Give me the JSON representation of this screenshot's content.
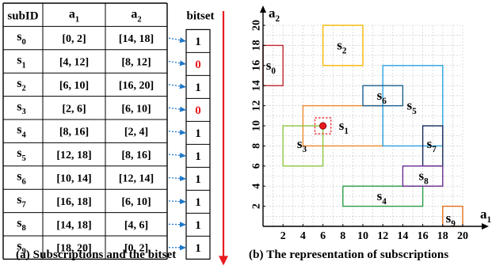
{
  "table": {
    "headers": {
      "subid": "subID",
      "a1": {
        "base": "a",
        "sub": "1"
      },
      "a2": {
        "base": "a",
        "sub": "2"
      },
      "bitset": "bitset"
    },
    "rows": [
      {
        "id": "s",
        "idx": "0",
        "a1": "[0, 2]",
        "a2": "[14, 18]",
        "bit": "1"
      },
      {
        "id": "s",
        "idx": "1",
        "a1": "[4, 12]",
        "a2": "[8, 12]",
        "bit": "0"
      },
      {
        "id": "s",
        "idx": "2",
        "a1": "[6, 10]",
        "a2": "[16, 20]",
        "bit": "1"
      },
      {
        "id": "s",
        "idx": "3",
        "a1": "[2, 6]",
        "a2": "[6, 10]",
        "bit": "0"
      },
      {
        "id": "s",
        "idx": "4",
        "a1": "[8, 16]",
        "a2": "[2, 4]",
        "bit": "1"
      },
      {
        "id": "s",
        "idx": "5",
        "a1": "[12, 18]",
        "a2": "[8, 16]",
        "bit": "1"
      },
      {
        "id": "s",
        "idx": "6",
        "a1": "[10, 14]",
        "a2": "[12, 14]",
        "bit": "1"
      },
      {
        "id": "s",
        "idx": "7",
        "a1": "[16, 18]",
        "a2": "[6, 10]",
        "bit": "1"
      },
      {
        "id": "s",
        "idx": "8",
        "a1": "[14, 18]",
        "a2": "[4, 6]",
        "bit": "1"
      },
      {
        "id": "s",
        "idx": "9",
        "a1": "[18, 20]",
        "a2": "[0, 2]",
        "bit": "1"
      }
    ],
    "bit_colors": {
      "one": "#000000",
      "zero": "#e8191f"
    },
    "arrow_color": "#1f78c8",
    "scan_arrow_color": "#e8191f"
  },
  "plot": {
    "x_axis": {
      "base": "a",
      "sub": "1"
    },
    "y_axis": {
      "base": "a",
      "sub": "2"
    },
    "range": [
      0,
      20
    ],
    "ticks": [
      2,
      4,
      6,
      8,
      10,
      12,
      14,
      16,
      18,
      20
    ],
    "grid": true,
    "rects": [
      {
        "name": "s",
        "idx": "0",
        "a1": [
          0,
          2
        ],
        "a2": [
          14,
          18
        ],
        "color": "#c0272d"
      },
      {
        "name": "s",
        "idx": "1",
        "a1": [
          4,
          12
        ],
        "a2": [
          8,
          12
        ],
        "color": "#ee8a2c"
      },
      {
        "name": "s",
        "idx": "2",
        "a1": [
          6,
          10
        ],
        "a2": [
          16,
          20
        ],
        "color": "#f5b700"
      },
      {
        "name": "s",
        "idx": "3",
        "a1": [
          2,
          6
        ],
        "a2": [
          6,
          10
        ],
        "color": "#8cc63f"
      },
      {
        "name": "s",
        "idx": "4",
        "a1": [
          8,
          16
        ],
        "a2": [
          2,
          4
        ],
        "color": "#2a9d47"
      },
      {
        "name": "s",
        "idx": "5",
        "a1": [
          12,
          18
        ],
        "a2": [
          8,
          16
        ],
        "color": "#29a3e0"
      },
      {
        "name": "s",
        "idx": "6",
        "a1": [
          10,
          14
        ],
        "a2": [
          12,
          14
        ],
        "color": "#1b5f8e"
      },
      {
        "name": "s",
        "idx": "7",
        "a1": [
          16,
          18
        ],
        "a2": [
          6,
          10
        ],
        "color": "#1a2a5c"
      },
      {
        "name": "s",
        "idx": "8",
        "a1": [
          14,
          18
        ],
        "a2": [
          4,
          6
        ],
        "color": "#6a2c91"
      },
      {
        "name": "s",
        "idx": "9",
        "a1": [
          18,
          20
        ],
        "a2": [
          0,
          2
        ],
        "color": "#e0701c"
      }
    ],
    "rect_labels": [
      {
        "idx": "0",
        "at": [
          0.3,
          15.6
        ]
      },
      {
        "idx": "1",
        "at": [
          7.6,
          9.6
        ]
      },
      {
        "idx": "2",
        "at": [
          7.4,
          17.6
        ]
      },
      {
        "idx": "3",
        "at": [
          3.4,
          7.8
        ]
      },
      {
        "idx": "4",
        "at": [
          11.4,
          2.6
        ]
      },
      {
        "idx": "5",
        "at": [
          14.4,
          11.6
        ]
      },
      {
        "idx": "6",
        "at": [
          11.4,
          12.6
        ]
      },
      {
        "idx": "7",
        "at": [
          16.4,
          7.8
        ]
      },
      {
        "idx": "8",
        "at": [
          15.6,
          4.6
        ]
      },
      {
        "idx": "9",
        "at": [
          18.3,
          0.4
        ]
      }
    ],
    "event_point": {
      "a1": 6,
      "a2": 10,
      "color": "#e8191f"
    },
    "event_box": {
      "a1": [
        5.2,
        6.8
      ],
      "a2": [
        9.2,
        10.8
      ],
      "color": "#e8191f"
    }
  },
  "captions": {
    "a": "(a) Subscriptions and the bitset",
    "b": "(b) The representation of subscriptions"
  }
}
